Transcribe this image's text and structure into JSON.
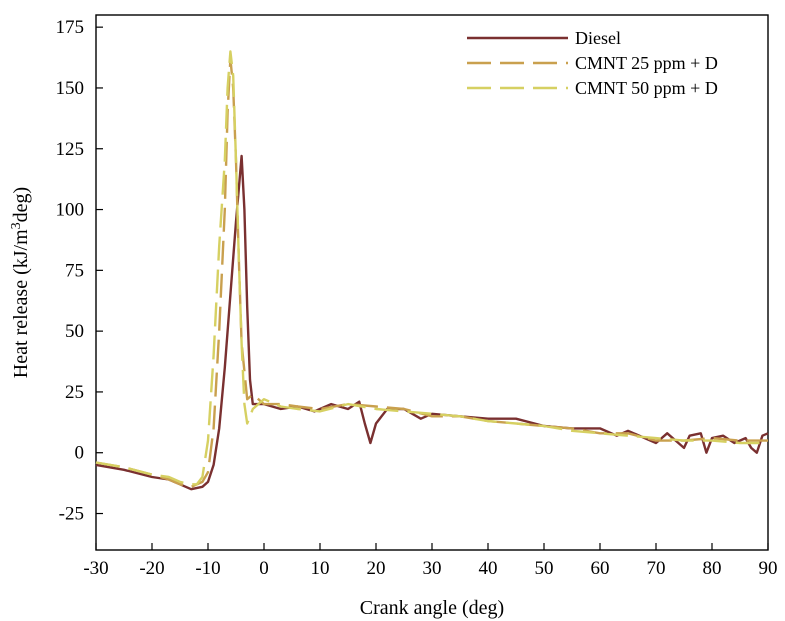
{
  "chart_data": {
    "type": "line",
    "title": "",
    "xlabel": "Crank angle (deg)",
    "ylabel": "Heat release (kJ/m³deg)",
    "ylabel_parts": {
      "prefix": "Heat release (kJ/m",
      "superscript": "3",
      "suffix": "deg)"
    },
    "xlim": [
      -30,
      90
    ],
    "ylim": [
      -40,
      180
    ],
    "xticks": [
      -30,
      -20,
      -10,
      0,
      10,
      20,
      30,
      40,
      50,
      60,
      70,
      80,
      90
    ],
    "yticks": [
      -25,
      0,
      25,
      50,
      75,
      100,
      125,
      150,
      175
    ],
    "grid": false,
    "legend_position": "top-right",
    "series": [
      {
        "name": "Diesel",
        "color": "#7a3030",
        "dash": "solid",
        "points": [
          [
            -30,
            -5
          ],
          [
            -25,
            -7
          ],
          [
            -20,
            -10
          ],
          [
            -17,
            -11
          ],
          [
            -15,
            -13
          ],
          [
            -13,
            -15
          ],
          [
            -11,
            -14
          ],
          [
            -10,
            -12
          ],
          [
            -9,
            -5
          ],
          [
            -8,
            10
          ],
          [
            -7,
            35
          ],
          [
            -6,
            65
          ],
          [
            -5,
            95
          ],
          [
            -4,
            122
          ],
          [
            -3.5,
            100
          ],
          [
            -3,
            60
          ],
          [
            -2.5,
            30
          ],
          [
            -2,
            20
          ],
          [
            0,
            20
          ],
          [
            3,
            18
          ],
          [
            6,
            19
          ],
          [
            9,
            17
          ],
          [
            12,
            20
          ],
          [
            15,
            18
          ],
          [
            17,
            21
          ],
          [
            18,
            12
          ],
          [
            19,
            4
          ],
          [
            20,
            12
          ],
          [
            22,
            18
          ],
          [
            25,
            18
          ],
          [
            28,
            14
          ],
          [
            30,
            16
          ],
          [
            35,
            15
          ],
          [
            40,
            14
          ],
          [
            45,
            14
          ],
          [
            50,
            11
          ],
          [
            55,
            10
          ],
          [
            60,
            10
          ],
          [
            63,
            7
          ],
          [
            65,
            9
          ],
          [
            68,
            6
          ],
          [
            70,
            4
          ],
          [
            72,
            8
          ],
          [
            74,
            4
          ],
          [
            75,
            2
          ],
          [
            76,
            7
          ],
          [
            78,
            8
          ],
          [
            79,
            0
          ],
          [
            80,
            6
          ],
          [
            82,
            7
          ],
          [
            84,
            4
          ],
          [
            86,
            6
          ],
          [
            87,
            2
          ],
          [
            88,
            0
          ],
          [
            89,
            7
          ],
          [
            90,
            8
          ]
        ]
      },
      {
        "name": "CMNT 25 ppm + D",
        "color": "#c9a04e",
        "dash": "long-dash",
        "points": [
          [
            -30,
            -4
          ],
          [
            -25,
            -6
          ],
          [
            -20,
            -9
          ],
          [
            -17,
            -11
          ],
          [
            -15,
            -13
          ],
          [
            -13,
            -14
          ],
          [
            -11,
            -12
          ],
          [
            -10,
            -8
          ],
          [
            -9,
            10
          ],
          [
            -8,
            50
          ],
          [
            -7,
            100
          ],
          [
            -6.5,
            140
          ],
          [
            -6,
            162
          ],
          [
            -5.5,
            150
          ],
          [
            -5,
            120
          ],
          [
            -4.5,
            80
          ],
          [
            -4,
            45
          ],
          [
            -3,
            22
          ],
          [
            -2,
            24
          ],
          [
            0,
            20
          ],
          [
            3,
            20
          ],
          [
            6,
            19
          ],
          [
            10,
            18
          ],
          [
            15,
            20
          ],
          [
            20,
            19
          ],
          [
            25,
            18
          ],
          [
            30,
            15
          ],
          [
            35,
            15
          ],
          [
            40,
            13
          ],
          [
            45,
            12
          ],
          [
            50,
            11
          ],
          [
            55,
            10
          ],
          [
            60,
            8
          ],
          [
            65,
            8
          ],
          [
            70,
            5
          ],
          [
            75,
            5
          ],
          [
            80,
            6
          ],
          [
            85,
            5
          ],
          [
            90,
            5
          ]
        ]
      },
      {
        "name": "CMNT 50 ppm + D",
        "color": "#d6d062",
        "dash": "long-dash",
        "points": [
          [
            -30,
            -4
          ],
          [
            -25,
            -6
          ],
          [
            -20,
            -9
          ],
          [
            -17,
            -10
          ],
          [
            -15,
            -12
          ],
          [
            -13,
            -13
          ],
          [
            -12,
            -13
          ],
          [
            -11,
            -10
          ],
          [
            -10,
            5
          ],
          [
            -9,
            40
          ],
          [
            -8,
            85
          ],
          [
            -7,
            120
          ],
          [
            -6.5,
            150
          ],
          [
            -6,
            165
          ],
          [
            -5.5,
            155
          ],
          [
            -5,
            120
          ],
          [
            -4.5,
            80
          ],
          [
            -4,
            45
          ],
          [
            -3.5,
            20
          ],
          [
            -3,
            12
          ],
          [
            -2,
            18
          ],
          [
            0,
            22
          ],
          [
            3,
            19
          ],
          [
            6,
            18
          ],
          [
            10,
            17
          ],
          [
            15,
            20
          ],
          [
            20,
            18
          ],
          [
            25,
            17
          ],
          [
            30,
            16
          ],
          [
            35,
            15
          ],
          [
            40,
            13
          ],
          [
            45,
            12
          ],
          [
            50,
            11
          ],
          [
            55,
            9
          ],
          [
            60,
            8
          ],
          [
            65,
            7
          ],
          [
            70,
            6
          ],
          [
            75,
            5
          ],
          [
            80,
            5
          ],
          [
            85,
            4
          ],
          [
            90,
            4
          ]
        ]
      }
    ]
  }
}
